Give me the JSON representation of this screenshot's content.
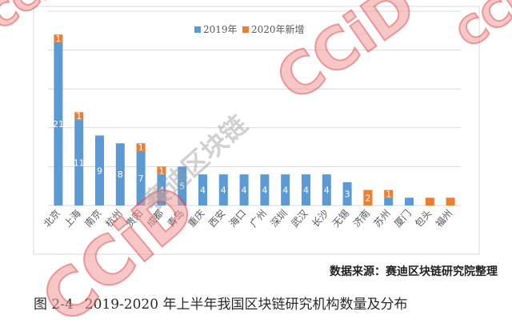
{
  "figure": {
    "source": "数据来源：赛迪区块链研究院整理",
    "caption_label": "图 2-4",
    "caption_text": "2019-2020 年上半年我国区块链研究机构数量及分布"
  },
  "watermark": {
    "brand": "CCiD",
    "text": "赛迪区块链"
  },
  "colors": {
    "grid": "#d9d9d9",
    "frame": "#d9d9d9",
    "axis_text": "#595959"
  },
  "chart_data": {
    "type": "bar",
    "stacked": true,
    "title": "",
    "xlabel": "",
    "ylabel": "",
    "ylim": [
      0,
      25
    ],
    "grid": true,
    "grid_interval": 5,
    "legend": "top",
    "categories": [
      "北京",
      "上海",
      "南京",
      "杭州",
      "贵阳",
      "成都",
      "青岛",
      "重庆",
      "西安",
      "海口",
      "广州",
      "深圳",
      "武汉",
      "长沙",
      "无锡",
      "济南",
      "苏州",
      "厦门",
      "包头",
      "福州"
    ],
    "series": [
      {
        "name": "2019年",
        "color": "#5b9bd5",
        "values": [
          21,
          11,
          9,
          8,
          7,
          4,
          5,
          4,
          4,
          4,
          4,
          4,
          4,
          4,
          3,
          0,
          1,
          1,
          0,
          0
        ],
        "labels": [
          "21",
          "11",
          "9",
          "8",
          "7",
          "4",
          "5",
          "4",
          "4",
          "4",
          "4",
          "4",
          "4",
          "4",
          "3",
          "",
          "",
          "",
          "",
          ""
        ]
      },
      {
        "name": "2020年新增",
        "color": "#ed7d31",
        "values": [
          1,
          1,
          0,
          0,
          1,
          1,
          0,
          0,
          0,
          0,
          0,
          0,
          0,
          0,
          0,
          2,
          1,
          0,
          1,
          1
        ],
        "labels": [
          "1",
          "1",
          "",
          "",
          "1",
          "1",
          "",
          "",
          "",
          "",
          "",
          "",
          "",
          "",
          "",
          "2",
          "1",
          "",
          "",
          ""
        ]
      }
    ]
  }
}
